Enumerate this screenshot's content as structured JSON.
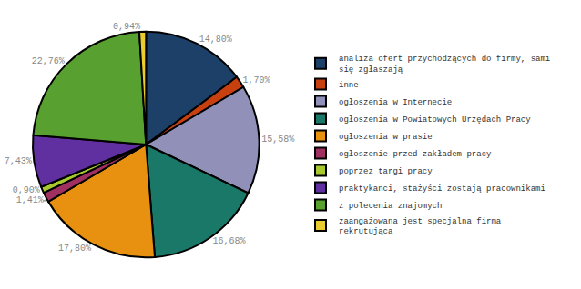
{
  "chart_data": {
    "type": "pie",
    "categories": [
      "analiza ofert przychodzących do firmy, sami\nsię zgłaszają",
      "inne",
      "ogłoszenia w Internecie",
      "ogłoszenia w Powiatowych Urzędach Pracy",
      "ogłoszenia w prasie",
      "ogłoszenie przed zakładem pracy",
      "poprzez targi pracy",
      "praktykanci, stażyści zostają pracownikami",
      "z polecenia znajomych",
      "zaangażowana jest specjalna firma\nrekrutująca"
    ],
    "values": [
      14.8,
      1.7,
      15.58,
      16.68,
      17.8,
      1.41,
      0.9,
      7.43,
      22.76,
      0.94
    ],
    "value_labels": [
      "14,80%",
      "1,70%",
      "15,58%",
      "16,68%",
      "17,80%",
      "1,41%",
      "0,90%",
      "7,43%",
      "22,76%",
      "0,94%"
    ],
    "colors": [
      "#1c4068",
      "#c94010",
      "#9090b8",
      "#1a7868",
      "#e89010",
      "#a03060",
      "#a8c830",
      "#6030a0",
      "#58a030",
      "#e8cc30"
    ],
    "data_labels": true,
    "legend": "right"
  }
}
